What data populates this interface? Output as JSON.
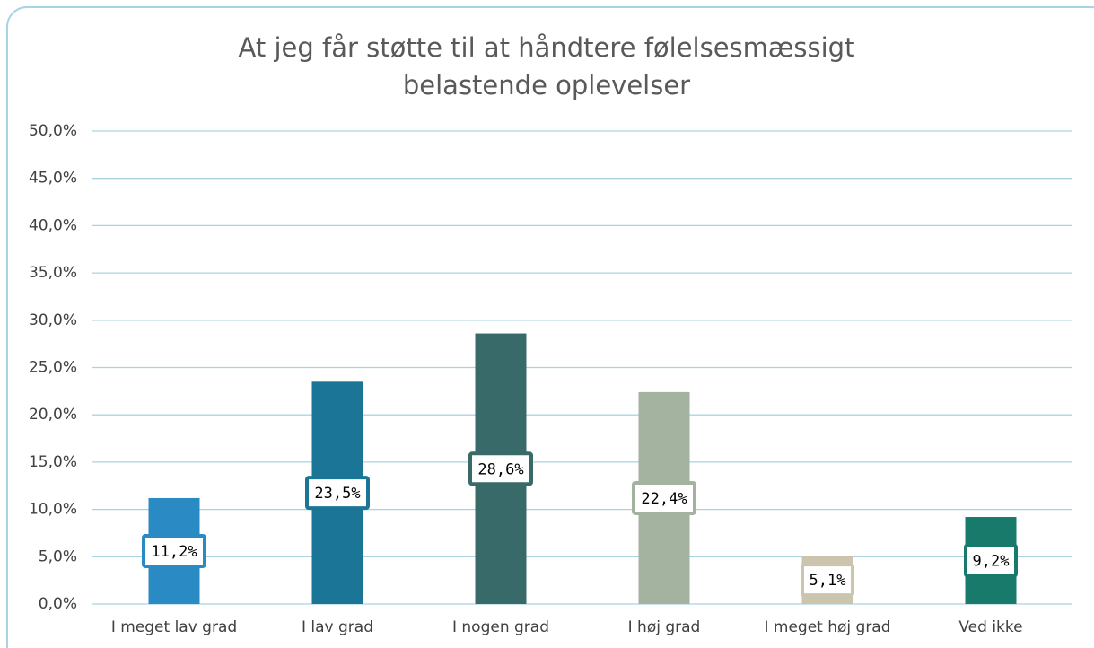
{
  "chart_data": {
    "type": "bar",
    "title": [
      "At jeg får støtte til at håndtere følelsesmæssigt",
      "belastende oplevelser"
    ],
    "categories": [
      "I meget lav grad",
      "I lav grad",
      "I nogen grad",
      "I høj grad",
      "I meget høj grad",
      "Ved ikke"
    ],
    "values": [
      11.2,
      23.5,
      28.6,
      22.4,
      5.1,
      9.2
    ],
    "value_labels": [
      "11,2%",
      "23,5%",
      "28,6%",
      "22,4%",
      "5,1%",
      "9,2%"
    ],
    "colors": [
      "#2a8ac4",
      "#1b7596",
      "#386a6a",
      "#a4b2a0",
      "#cbc5ad",
      "#187a6a"
    ],
    "ylim": [
      0,
      50
    ],
    "yticks": [
      {
        "value": 0,
        "label": "0,0%"
      },
      {
        "value": 5,
        "label": "5,0%"
      },
      {
        "value": 10,
        "label": "10,0%"
      },
      {
        "value": 15,
        "label": "15,0%"
      },
      {
        "value": 20,
        "label": "20,0%"
      },
      {
        "value": 25,
        "label": "25,0%"
      },
      {
        "value": 30,
        "label": "30,0%"
      },
      {
        "value": 35,
        "label": "35,0%"
      },
      {
        "value": 40,
        "label": "40,0%"
      },
      {
        "value": 45,
        "label": "45,0%"
      },
      {
        "value": 50,
        "label": "50,0%"
      }
    ],
    "grid": true
  }
}
